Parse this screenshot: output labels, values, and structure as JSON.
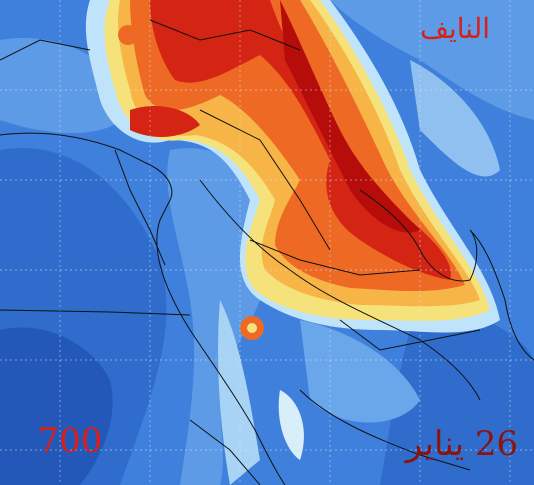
{
  "watermark": "النايف",
  "level": "700",
  "date": "26 يناير"
}
